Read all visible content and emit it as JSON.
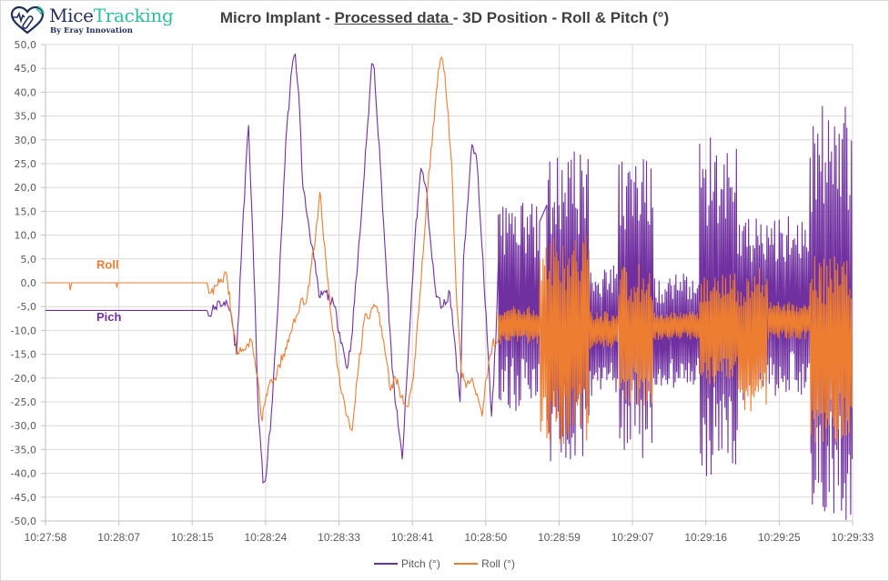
{
  "logo": {
    "name_part1": "Mice",
    "name_part2": "Tracking",
    "subtitle": "By Eray Innovation",
    "icon": "heart-implant-signal-icon"
  },
  "title": {
    "prefix": "Micro Implant - ",
    "underlined": "Processed data ",
    "suffix": "- 3D Position - Roll & Pitch (°)"
  },
  "colors": {
    "pitch": "#7030a0",
    "roll": "#ed7d31",
    "grid": "#d9d9d9",
    "axis_text": "#595959"
  },
  "chart_data": {
    "type": "line",
    "title": "Micro Implant - Processed data - 3D Position - Roll & Pitch (°)",
    "xlabel": "",
    "ylabel": "",
    "ylim": [
      -50,
      50
    ],
    "y_ticks": [
      "50,0",
      "45,0",
      "40,0",
      "35,0",
      "30,0",
      "25,0",
      "20,0",
      "15,0",
      "10,0",
      "5,0",
      "0,0",
      "-5,0",
      "-10,0",
      "-15,0",
      "-20,0",
      "-25,0",
      "-30,0",
      "-35,0",
      "-40,0",
      "-45,0",
      "-50,0"
    ],
    "x_ticks": [
      "10:27:58",
      "10:28:07",
      "10:28:15",
      "10:28:24",
      "10:28:33",
      "10:28:41",
      "10:28:50",
      "10:28:59",
      "10:29:07",
      "10:29:16",
      "10:29:25",
      "10:29:33"
    ],
    "x_range_seconds": [
      0,
      95
    ],
    "grid": true,
    "legend_position": "bottom",
    "annotations": [
      {
        "text": "Roll",
        "series": "Roll (°)",
        "near_x_seconds": 6,
        "near_y": 3
      },
      {
        "text": "Pich",
        "series": "Pitch (°)",
        "near_x_seconds": 6,
        "near_y": -8
      }
    ],
    "series": [
      {
        "name": "Pitch (°)",
        "color": "#7030a0",
        "keypoints_t_value": [
          [
            0,
            -5.8
          ],
          [
            19,
            -5.8
          ],
          [
            19.2,
            -7
          ],
          [
            20,
            -5
          ],
          [
            21,
            -4
          ],
          [
            21.8,
            -6
          ],
          [
            22.5,
            -15
          ],
          [
            23.3,
            15
          ],
          [
            23.9,
            33
          ],
          [
            24.4,
            10
          ],
          [
            25,
            -25
          ],
          [
            25.6,
            -42
          ],
          [
            26,
            -40
          ],
          [
            26.7,
            -25
          ],
          [
            27.5,
            0
          ],
          [
            28.3,
            30
          ],
          [
            29,
            45
          ],
          [
            29.4,
            48
          ],
          [
            29.8,
            40
          ],
          [
            30.3,
            20
          ],
          [
            31,
            12
          ],
          [
            31.6,
            5
          ],
          [
            32.2,
            -3
          ],
          [
            33,
            -2
          ],
          [
            34,
            -5
          ],
          [
            35.5,
            -18
          ],
          [
            36,
            -12
          ],
          [
            37,
            10
          ],
          [
            37.8,
            30
          ],
          [
            38.4,
            46
          ],
          [
            38.7,
            45
          ],
          [
            39.4,
            25
          ],
          [
            40.2,
            0
          ],
          [
            40.8,
            -18
          ],
          [
            41.5,
            -30
          ],
          [
            42,
            -37
          ],
          [
            42.7,
            -15
          ],
          [
            43.5,
            10
          ],
          [
            44.2,
            24
          ],
          [
            44.8,
            20
          ],
          [
            45.5,
            5
          ],
          [
            46,
            -3
          ],
          [
            46.8,
            -5
          ],
          [
            47.6,
            -2
          ],
          [
            48.3,
            -15
          ],
          [
            48.8,
            -25
          ],
          [
            49.2,
            5
          ],
          [
            50.2,
            29
          ],
          [
            50.8,
            25
          ],
          [
            51.5,
            5
          ],
          [
            52,
            -12
          ],
          [
            52.5,
            -28
          ],
          [
            53,
            -12
          ],
          [
            53.3,
            5
          ]
        ],
        "oscillation_bursts": [
          {
            "t_start": 53.3,
            "t_end": 58.2,
            "center": -5,
            "amplitude": 22
          },
          {
            "t_start": 59.0,
            "t_end": 64.0,
            "center": -5,
            "amplitude": 33
          },
          {
            "t_start": 64.0,
            "t_end": 67.5,
            "center": -10,
            "amplitude": 14
          },
          {
            "t_start": 67.5,
            "t_end": 71.5,
            "center": -5,
            "amplitude": 32
          },
          {
            "t_start": 71.5,
            "t_end": 77.0,
            "center": -10,
            "amplitude": 12
          },
          {
            "t_start": 77.0,
            "t_end": 81.5,
            "center": -5,
            "amplitude": 36
          },
          {
            "t_start": 81.5,
            "t_end": 90.0,
            "center": -5,
            "amplitude": 20
          },
          {
            "t_start": 90.0,
            "t_end": 95.0,
            "center": -6,
            "amplitude": 44
          }
        ]
      },
      {
        "name": "Roll (°)",
        "color": "#ed7d31",
        "keypoints_t_value": [
          [
            0,
            0
          ],
          [
            2.8,
            0
          ],
          [
            2.9,
            -1.5
          ],
          [
            3.1,
            0
          ],
          [
            8.3,
            0
          ],
          [
            8.4,
            -1
          ],
          [
            8.5,
            0
          ],
          [
            19,
            0
          ],
          [
            19.5,
            -2
          ],
          [
            20.5,
            0
          ],
          [
            21.3,
            2
          ],
          [
            22,
            -8
          ],
          [
            22.7,
            -15
          ],
          [
            23.4,
            -14
          ],
          [
            24.2,
            -12
          ],
          [
            25,
            -20
          ],
          [
            25.5,
            -29
          ],
          [
            26.2,
            -22
          ],
          [
            27,
            -20
          ],
          [
            28,
            -15
          ],
          [
            29,
            -10
          ],
          [
            30,
            -4
          ],
          [
            30.8,
            -3
          ],
          [
            31.8,
            10
          ],
          [
            32.3,
            19
          ],
          [
            33,
            5
          ],
          [
            33.8,
            -10
          ],
          [
            34.6,
            -20
          ],
          [
            35.5,
            -28
          ],
          [
            36.1,
            -31
          ],
          [
            36.7,
            -20
          ],
          [
            37.5,
            -8
          ],
          [
            38.3,
            -6
          ],
          [
            39,
            -5
          ],
          [
            39.8,
            -12
          ],
          [
            40.5,
            -22
          ],
          [
            41.2,
            -20
          ],
          [
            41.9,
            -24
          ],
          [
            42.6,
            -26
          ],
          [
            43.3,
            -20
          ],
          [
            44.2,
            0
          ],
          [
            45,
            20
          ],
          [
            46,
            40
          ],
          [
            46.5,
            47
          ],
          [
            47,
            44
          ],
          [
            47.8,
            25
          ],
          [
            48.3,
            0
          ],
          [
            48.9,
            -18
          ],
          [
            49.5,
            -22
          ],
          [
            50.2,
            -20
          ],
          [
            50.9,
            -24
          ],
          [
            51.4,
            -28
          ],
          [
            51.9,
            -20
          ],
          [
            52.6,
            -13
          ],
          [
            53.3,
            -12
          ]
        ],
        "oscillation_bursts": [
          {
            "t_start": 53.3,
            "t_end": 58.2,
            "center": -9,
            "amplitude": 4
          },
          {
            "t_start": 58.2,
            "t_end": 64.0,
            "center": -12,
            "amplitude": 22
          },
          {
            "t_start": 64.0,
            "t_end": 67.5,
            "center": -10,
            "amplitude": 4
          },
          {
            "t_start": 67.5,
            "t_end": 71.5,
            "center": -11,
            "amplitude": 15
          },
          {
            "t_start": 71.5,
            "t_end": 77.0,
            "center": -9,
            "amplitude": 3
          },
          {
            "t_start": 77.0,
            "t_end": 81.5,
            "center": -10,
            "amplitude": 12
          },
          {
            "t_start": 81.5,
            "t_end": 85.0,
            "center": -12,
            "amplitude": 15
          },
          {
            "t_start": 85.0,
            "t_end": 90.0,
            "center": -8,
            "amplitude": 4
          },
          {
            "t_start": 90.0,
            "t_end": 95.0,
            "center": -14,
            "amplitude": 20
          }
        ]
      }
    ]
  },
  "legend": {
    "items": [
      {
        "label": "Pitch (°)",
        "color": "#7030a0"
      },
      {
        "label": "Roll (°)",
        "color": "#ed7d31"
      }
    ]
  }
}
